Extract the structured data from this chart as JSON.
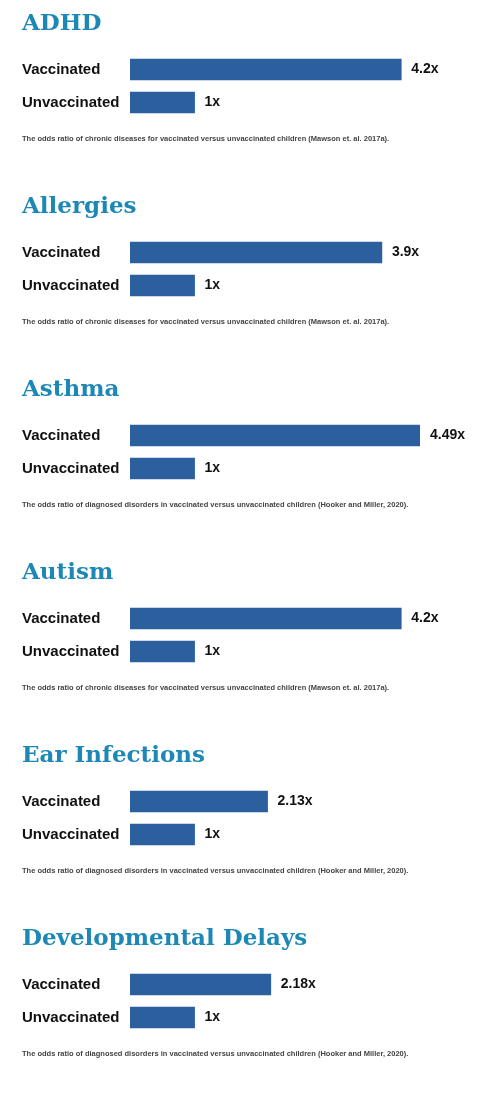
{
  "chart_data": [
    {
      "type": "bar",
      "orientation": "horizontal",
      "title": "ADHD",
      "categories": [
        "Vaccinated",
        "Unvaccinated"
      ],
      "values": [
        4.2,
        1
      ],
      "value_labels": [
        "4.2x",
        "1x"
      ],
      "color": "#2b5f9e",
      "tick_labels": "y",
      "grid": false,
      "legend": false,
      "annotations": [
        "The odds ratio of chronic diseases for vaccinated versus unvaccinated children (Mawson et. al. 2017a)."
      ]
    },
    {
      "type": "bar",
      "orientation": "horizontal",
      "title": "Allergies",
      "categories": [
        "Vaccinated",
        "Unvaccinated"
      ],
      "values": [
        3.9,
        1
      ],
      "value_labels": [
        "3.9x",
        "1x"
      ],
      "color": "#2b5f9e",
      "tick_labels": "y",
      "grid": false,
      "legend": false,
      "annotations": [
        "The odds ratio of chronic diseases for vaccinated versus unvaccinated children (Mawson et. al. 2017a)."
      ]
    },
    {
      "type": "bar",
      "orientation": "horizontal",
      "title": "Asthma",
      "categories": [
        "Vaccinated",
        "Unvaccinated"
      ],
      "values": [
        4.49,
        1
      ],
      "value_labels": [
        "4.49x",
        "1x"
      ],
      "color": "#2b5f9e",
      "tick_labels": "y",
      "grid": false,
      "legend": false,
      "annotations": [
        "The odds ratio of diagnosed disorders in vaccinated versus unvaccinated children (Hooker and Miller, 2020)."
      ]
    },
    {
      "type": "bar",
      "orientation": "horizontal",
      "title": "Autism",
      "categories": [
        "Vaccinated",
        "Unvaccinated"
      ],
      "values": [
        4.2,
        1
      ],
      "value_labels": [
        "4.2x",
        "1x"
      ],
      "color": "#2b5f9e",
      "tick_labels": "y",
      "grid": false,
      "legend": false,
      "annotations": [
        "The odds ratio of chronic diseases for vaccinated versus unvaccinated children (Mawson et. al. 2017a)."
      ]
    },
    {
      "type": "bar",
      "orientation": "horizontal",
      "title": "Ear Infections",
      "categories": [
        "Vaccinated",
        "Unvaccinated"
      ],
      "values": [
        2.13,
        1
      ],
      "value_labels": [
        "2.13x",
        "1x"
      ],
      "color": "#2b5f9e",
      "tick_labels": "y",
      "grid": false,
      "legend": false,
      "annotations": [
        "The odds ratio of diagnosed disorders in vaccinated versus unvaccinated children (Hooker and Miller, 2020)."
      ]
    },
    {
      "type": "bar",
      "orientation": "horizontal",
      "title": "Developmental Delays",
      "categories": [
        "Vaccinated",
        "Unvaccinated"
      ],
      "values": [
        2.18,
        1
      ],
      "value_labels": [
        "2.18x",
        "1x"
      ],
      "color": "#2b5f9e",
      "tick_labels": "y",
      "grid": false,
      "legend": false,
      "annotations": [
        "The odds ratio of diagnosed disorders in vaccinated versus unvaccinated children (Hooker and Miller, 2020)."
      ]
    }
  ]
}
